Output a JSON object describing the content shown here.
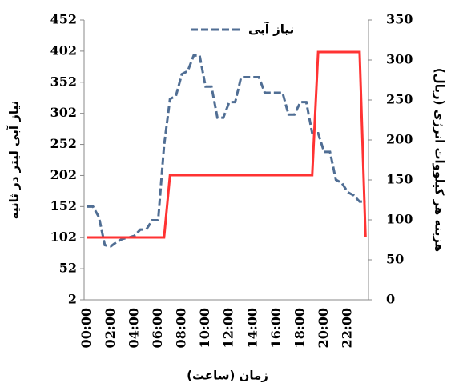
{
  "chart_data": {
    "type": "line",
    "x_label": "زمان (ساعت)",
    "y_label": "نیاز آبی لیتر در ثانیه",
    "y2_label": "هزینه هر کیلووات انرژی (ریال)",
    "categories": [
      "00:00",
      null,
      null,
      null,
      "02:00",
      null,
      null,
      null,
      "04:00",
      null,
      null,
      null,
      "06:00",
      null,
      null,
      null,
      "08:00",
      null,
      null,
      null,
      "10:00",
      null,
      null,
      null,
      "12:00",
      null,
      null,
      null,
      "14:00",
      null,
      null,
      null,
      "16:00",
      null,
      null,
      null,
      "18:00",
      null,
      null,
      null,
      "20:00",
      null,
      null,
      null,
      "22:00",
      null,
      null,
      null
    ],
    "ylim": [
      2,
      452
    ],
    "yticks": [
      2,
      52,
      102,
      152,
      202,
      252,
      302,
      352,
      402,
      452
    ],
    "y2lim": [
      0,
      350
    ],
    "y2ticks": [
      0,
      50,
      100,
      150,
      200,
      250,
      300,
      350
    ],
    "legend": "top",
    "series": [
      {
        "name": "نیاز آبی",
        "color": "#506e94",
        "dashed": true,
        "values": [
          152,
          152,
          135,
          90,
          88,
          95,
          100,
          102,
          105,
          115,
          115,
          130,
          130,
          250,
          325,
          330,
          365,
          370,
          395,
          395,
          345,
          345,
          295,
          295,
          320,
          320,
          360,
          360,
          360,
          360,
          335,
          335,
          335,
          335,
          300,
          300,
          320,
          320,
          270,
          270,
          240,
          240,
          195,
          190,
          175,
          170,
          160,
          160
        ]
      },
      {
        "color": "#ff3333",
        "axis": "y2",
        "values": [
          78,
          78,
          78,
          78,
          78,
          78,
          78,
          78,
          78,
          78,
          78,
          78,
          78,
          78,
          156,
          156,
          156,
          156,
          156,
          156,
          156,
          156,
          156,
          156,
          156,
          156,
          156,
          156,
          156,
          156,
          156,
          156,
          156,
          156,
          156,
          156,
          156,
          156,
          156,
          310,
          310,
          310,
          310,
          310,
          310,
          310,
          310,
          78
        ]
      }
    ]
  }
}
